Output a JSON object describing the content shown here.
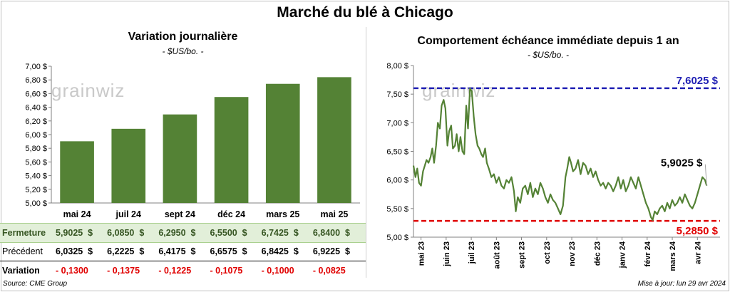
{
  "page": {
    "title": "Marché du blé à Chicago",
    "source": "Source: CME Group",
    "updated": "Mise à jour: lun 29 avr 2024",
    "watermark": "grainwiz"
  },
  "left_panel": {
    "title": "Variation  journalière",
    "unit": "- $US/bo. -"
  },
  "right_panel": {
    "title": "Comportement  échéance immédiate depuis 1 an",
    "unit": "- $US/bo. -"
  },
  "table": {
    "rows": [
      {
        "label": "Fermeture",
        "values": [
          "5,9025",
          "6,0850",
          "6,2950",
          "6,5500",
          "6,7425",
          "6,8400"
        ],
        "suffix": "$",
        "color": "#375623"
      },
      {
        "label": "Précédent",
        "values": [
          "6,0325",
          "6,2225",
          "6,4175",
          "6,6575",
          "6,8425",
          "6,9225"
        ],
        "suffix": "$",
        "color": "#000000"
      },
      {
        "label": "Variation",
        "values": [
          "- 0,1300",
          "- 0,1375",
          "- 0,1225",
          "- 0,1075",
          "- 0,1000",
          "- 0,0825"
        ],
        "suffix": "",
        "color": "#e00000"
      }
    ],
    "fermeture_bg": "#e2efd9"
  },
  "chart_data": [
    {
      "type": "bar",
      "title": "Variation  journalière",
      "ylabel": "$US/bo.",
      "categories": [
        "mai 24",
        "juil 24",
        "sept 24",
        "déc 24",
        "mars 25",
        "mai 25"
      ],
      "values": [
        5.9025,
        6.085,
        6.295,
        6.55,
        6.7425,
        6.84
      ],
      "ylim": [
        5.0,
        7.0
      ],
      "yticks": [
        "5,00 $",
        "5,20 $",
        "5,40 $",
        "5,60 $",
        "5,80 $",
        "6,00 $",
        "6,20 $",
        "6,40 $",
        "6,60 $",
        "6,80 $",
        "7,00 $"
      ],
      "color": "#548235"
    },
    {
      "type": "line",
      "title": "Comportement  échéance immédiate depuis 1 an",
      "ylabel": "$US/bo.",
      "ylim": [
        5.0,
        8.0
      ],
      "yticks": [
        "5,00 $",
        "5,50 $",
        "6,00 $",
        "6,50 $",
        "7,00 $",
        "7,50 $",
        "8,00 $"
      ],
      "xticks": [
        "mai 23",
        "juin 23",
        "juil 23",
        "août 23",
        "sept 23",
        "oct 23",
        "nov 23",
        "déc 23",
        "janv 24",
        "févr 24",
        "mars 24",
        "avr 24"
      ],
      "x_range": [
        0,
        12.2
      ],
      "color": "#548235",
      "max_line": {
        "value": 7.6025,
        "label": "7,6025 $",
        "color": "#1f1fb4"
      },
      "min_line": {
        "value": 5.285,
        "label": "5,2850 $",
        "color": "#e00000"
      },
      "last_label": "5,9025 $",
      "points": [
        [
          0.0,
          6.25
        ],
        [
          0.08,
          6.05
        ],
        [
          0.15,
          6.2
        ],
        [
          0.22,
          5.95
        ],
        [
          0.3,
          5.9
        ],
        [
          0.38,
          6.15
        ],
        [
          0.45,
          6.25
        ],
        [
          0.52,
          6.35
        ],
        [
          0.6,
          6.3
        ],
        [
          0.68,
          6.4
        ],
        [
          0.75,
          6.55
        ],
        [
          0.82,
          6.3
        ],
        [
          0.9,
          6.6
        ],
        [
          0.97,
          7.0
        ],
        [
          1.05,
          6.9
        ],
        [
          1.12,
          7.3
        ],
        [
          1.2,
          7.4
        ],
        [
          1.27,
          7.25
        ],
        [
          1.35,
          6.6
        ],
        [
          1.42,
          6.85
        ],
        [
          1.5,
          6.95
        ],
        [
          1.57,
          6.55
        ],
        [
          1.65,
          6.6
        ],
        [
          1.72,
          6.8
        ],
        [
          1.8,
          6.5
        ],
        [
          1.87,
          6.75
        ],
        [
          1.95,
          6.5
        ],
        [
          2.02,
          6.45
        ],
        [
          2.1,
          7.3
        ],
        [
          2.17,
          6.9
        ],
        [
          2.25,
          7.6
        ],
        [
          2.32,
          7.55
        ],
        [
          2.4,
          7.1
        ],
        [
          2.47,
          6.8
        ],
        [
          2.55,
          6.6
        ],
        [
          2.62,
          6.55
        ],
        [
          2.7,
          6.45
        ],
        [
          2.77,
          6.4
        ],
        [
          2.85,
          6.55
        ],
        [
          2.92,
          6.3
        ],
        [
          3.0,
          6.2
        ],
        [
          3.1,
          6.05
        ],
        [
          3.2,
          6.1
        ],
        [
          3.3,
          5.95
        ],
        [
          3.4,
          6.05
        ],
        [
          3.5,
          5.9
        ],
        [
          3.6,
          5.85
        ],
        [
          3.7,
          6.0
        ],
        [
          3.8,
          5.95
        ],
        [
          3.9,
          6.05
        ],
        [
          4.0,
          5.8
        ],
        [
          4.07,
          5.45
        ],
        [
          4.15,
          5.7
        ],
        [
          4.25,
          5.6
        ],
        [
          4.35,
          5.85
        ],
        [
          4.45,
          5.9
        ],
        [
          4.55,
          5.75
        ],
        [
          4.65,
          5.95
        ],
        [
          4.75,
          5.7
        ],
        [
          4.85,
          5.85
        ],
        [
          4.95,
          5.75
        ],
        [
          5.05,
          5.95
        ],
        [
          5.15,
          5.85
        ],
        [
          5.25,
          5.7
        ],
        [
          5.35,
          5.6
        ],
        [
          5.45,
          5.75
        ],
        [
          5.55,
          5.65
        ],
        [
          5.65,
          5.6
        ],
        [
          5.75,
          5.5
        ],
        [
          5.85,
          5.4
        ],
        [
          5.95,
          5.55
        ],
        [
          6.05,
          6.05
        ],
        [
          6.12,
          6.2
        ],
        [
          6.2,
          6.4
        ],
        [
          6.27,
          6.3
        ],
        [
          6.35,
          6.15
        ],
        [
          6.45,
          6.2
        ],
        [
          6.55,
          6.35
        ],
        [
          6.65,
          6.1
        ],
        [
          6.75,
          6.3
        ],
        [
          6.85,
          6.25
        ],
        [
          6.95,
          6.1
        ],
        [
          7.05,
          6.2
        ],
        [
          7.15,
          6.05
        ],
        [
          7.25,
          6.15
        ],
        [
          7.35,
          6.0
        ],
        [
          7.45,
          5.9
        ],
        [
          7.55,
          5.95
        ],
        [
          7.65,
          5.85
        ],
        [
          7.75,
          5.95
        ],
        [
          7.85,
          5.9
        ],
        [
          7.95,
          5.8
        ],
        [
          8.05,
          5.9
        ],
        [
          8.15,
          6.05
        ],
        [
          8.25,
          5.85
        ],
        [
          8.35,
          6.0
        ],
        [
          8.45,
          5.8
        ],
        [
          8.55,
          5.9
        ],
        [
          8.65,
          6.05
        ],
        [
          8.75,
          5.95
        ],
        [
          8.85,
          5.85
        ],
        [
          8.95,
          6.05
        ],
        [
          9.05,
          5.9
        ],
        [
          9.15,
          5.75
        ],
        [
          9.25,
          5.6
        ],
        [
          9.35,
          5.5
        ],
        [
          9.45,
          5.35
        ],
        [
          9.52,
          5.3
        ],
        [
          9.6,
          5.45
        ],
        [
          9.7,
          5.4
        ],
        [
          9.8,
          5.5
        ],
        [
          9.9,
          5.55
        ],
        [
          10.0,
          5.45
        ],
        [
          10.1,
          5.6
        ],
        [
          10.2,
          5.5
        ],
        [
          10.3,
          5.65
        ],
        [
          10.4,
          5.55
        ],
        [
          10.5,
          5.6
        ],
        [
          10.6,
          5.7
        ],
        [
          10.7,
          5.6
        ],
        [
          10.8,
          5.75
        ],
        [
          10.9,
          5.65
        ],
        [
          11.0,
          5.55
        ],
        [
          11.1,
          5.5
        ],
        [
          11.2,
          5.6
        ],
        [
          11.3,
          5.75
        ],
        [
          11.4,
          5.9
        ],
        [
          11.5,
          6.05
        ],
        [
          11.6,
          6.0
        ],
        [
          11.67,
          5.9
        ]
      ]
    }
  ]
}
